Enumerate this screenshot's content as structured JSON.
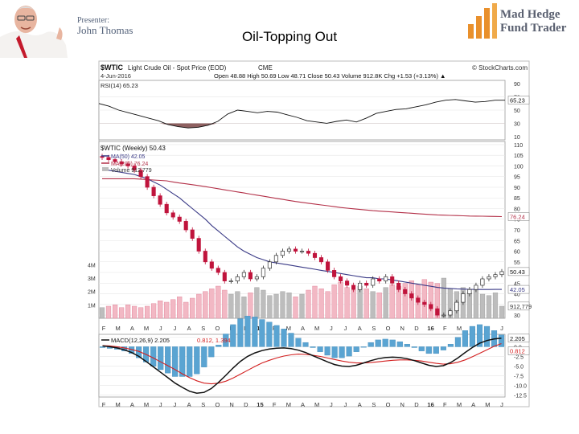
{
  "slide": {
    "title": "Oil-Topping Out",
    "presenter_label": "Presenter:",
    "presenter_name": "John Thomas",
    "logo_line1": "Mad Hedge",
    "logo_line2": "Fund Trader"
  },
  "colors": {
    "accent_orange": "#e9902c",
    "rsi_fill": "#7a4444",
    "ma50": "#3a3a86",
    "ma200": "#b33048",
    "candle_up": "#333333",
    "candle_down": "#c0143c",
    "macd_hist": "#5aa4d2",
    "signal": "#d32020"
  },
  "chart_data": {
    "type": "line",
    "header": {
      "symbol": "$WTIC",
      "name": "Light Crude Oil - Spot Price (EOD)",
      "exchange": "CME",
      "source": "© StockCharts.com",
      "date": "4-Jun-2016",
      "ohlc": "Open 48.88 High 50.69 Low 48.71 Close 50.43 Volume 912.8K Chg +1.53 (+3.13%) ▲"
    },
    "rsi": {
      "label": "RSI(14) 65.23",
      "current": 65.23,
      "ticks": [
        "90",
        "70",
        "50",
        "30",
        "10"
      ],
      "values": [
        60,
        56,
        50,
        46,
        42,
        38,
        34,
        28,
        25,
        23,
        24,
        27,
        33,
        44,
        50,
        48,
        46,
        48,
        47,
        43,
        39,
        34,
        32,
        30,
        33,
        35,
        32,
        38,
        45,
        48,
        51,
        52,
        55,
        58,
        62,
        65,
        66,
        64,
        62,
        63,
        65,
        65
      ]
    },
    "price": {
      "title": "$WTIC (Weekly) 50.43",
      "ma50_label": "MA(50) 42.05",
      "ma200_label": "MA(200) 76.24",
      "volume_label": "Volume 912,779",
      "ticks": [
        "110",
        "105",
        "100",
        "95",
        "90",
        "85",
        "80",
        "75",
        "70",
        "65",
        "60",
        "55",
        "50",
        "45",
        "40",
        "35",
        "30"
      ],
      "tick_values": [
        110,
        105,
        100,
        95,
        90,
        85,
        80,
        75,
        70,
        65,
        60,
        55,
        50,
        45,
        40,
        35,
        30
      ],
      "ylim": [
        28.5,
        111.5
      ],
      "close": 50.43,
      "ma50_last": 42.05,
      "ma200_last": 76.24,
      "close_tag": "50.43",
      "ma50_tag": "42.05",
      "ma200_tag": "76.24",
      "closes": [
        104,
        103,
        102,
        101,
        100,
        98,
        95,
        90,
        86,
        82,
        78,
        76,
        74,
        70,
        66,
        60,
        55,
        52,
        50,
        46,
        46,
        48,
        50,
        47,
        48,
        52,
        55,
        58,
        60,
        61,
        60,
        60,
        59,
        57,
        55,
        51,
        48,
        46,
        44,
        42,
        45,
        44,
        47,
        46,
        48,
        45,
        42,
        40,
        38,
        36,
        35,
        33,
        30,
        30,
        32,
        36,
        40,
        42,
        44,
        47,
        48,
        49,
        50.43
      ],
      "ma50": [
        98,
        98,
        97.5,
        97,
        96.5,
        96,
        95,
        94,
        92.5,
        91,
        89,
        87,
        85,
        82.5,
        80,
        77.5,
        75,
        72,
        69.5,
        67,
        64.5,
        62,
        60,
        58.5,
        57,
        56,
        55,
        54.5,
        54,
        53.5,
        53,
        52.5,
        52,
        51.5,
        51,
        50.5,
        50,
        49.5,
        49,
        48.5,
        48,
        47.5,
        47.5,
        47,
        47,
        46.5,
        46,
        45.5,
        45,
        44.5,
        44,
        43.5,
        43,
        42.7,
        42.5,
        42.3,
        42.2,
        42.1,
        42,
        42,
        42,
        42.05,
        42.05
      ],
      "ma200": [
        94,
        94,
        94,
        94,
        94,
        94,
        93.8,
        93.6,
        93.4,
        93.2,
        93,
        92.5,
        92,
        91.6,
        91.2,
        90.8,
        90.3,
        89.8,
        89.3,
        88.8,
        88.3,
        87.8,
        87.3,
        86.8,
        86.3,
        85.8,
        85.3,
        84.8,
        84.3,
        83.8,
        83.3,
        82.9,
        82.5,
        82.1,
        81.7,
        81.3,
        80.9,
        80.5,
        80.2,
        79.9,
        79.6,
        79.3,
        79,
        78.8,
        78.6,
        78.4,
        78.2,
        78,
        77.8,
        77.6,
        77.4,
        77.2,
        77,
        76.9,
        76.8,
        76.7,
        76.6,
        76.5,
        76.45,
        76.4,
        76.35,
        76.3,
        76.24
      ]
    },
    "volume": {
      "ticks": [
        "4M",
        "3M",
        "2M",
        "1M"
      ],
      "tick_values": [
        4,
        3,
        2,
        1
      ],
      "ylim": [
        0,
        4.5
      ],
      "last": "912,779",
      "values_m": [
        0.8,
        0.9,
        1.0,
        0.8,
        1.0,
        0.9,
        0.8,
        0.9,
        1.1,
        1.3,
        1.2,
        1.4,
        1.6,
        1.2,
        1.5,
        1.8,
        2.0,
        2.2,
        2.4,
        2.1,
        1.8,
        2.0,
        1.6,
        1.9,
        2.3,
        2.1,
        1.7,
        1.8,
        2.0,
        1.9,
        1.6,
        1.8,
        2.1,
        2.4,
        2.2,
        2.0,
        2.5,
        2.7,
        2.3,
        2.1,
        2.4,
        2.2,
        2.0,
        1.9,
        2.3,
        2.5,
        2.4,
        2.6,
        2.8,
        2.5,
        2.9,
        2.7,
        2.6,
        3.0,
        2.2,
        2.0,
        2.3,
        1.9,
        2.1,
        1.8,
        1.7,
        1.9,
        0.9
      ]
    },
    "macd": {
      "label": "MACD(12,26,9) 2.205, 0.812, 1.394",
      "macd_label": "MACD(12,26,9) 2.205",
      "signal_label": "0.812, 1.394",
      "ticks": [
        "2.5",
        "0.0",
        "-2.5",
        "-5.0",
        "-7.5",
        "-10.0",
        "-12.5"
      ],
      "tick_values": [
        2.5,
        0,
        -2.5,
        -5,
        -7.5,
        -10,
        -12.5
      ],
      "ylim": [
        -13,
        3.2
      ],
      "macd_tag": "2.205",
      "signal_tag": "0.812",
      "macd": [
        0.2,
        0,
        -0.3,
        -0.8,
        -1.5,
        -2.5,
        -3.8,
        -5.2,
        -6.6,
        -8,
        -9.4,
        -10.5,
        -11.5,
        -12,
        -11.8,
        -10.8,
        -9.2,
        -7.4,
        -5.5,
        -3.8,
        -2.5,
        -1.6,
        -1,
        -0.6,
        -0.4,
        -0.3,
        -0.5,
        -0.9,
        -1.5,
        -2.3,
        -3.1,
        -3.9,
        -4.6,
        -5,
        -5.1,
        -4.8,
        -4.2,
        -3.6,
        -3.1,
        -2.8,
        -2.7,
        -2.8,
        -3.1,
        -3.6,
        -4.2,
        -4.8,
        -5.1,
        -4.9,
        -4.1,
        -2.9,
        -1.5,
        -0.2,
        0.9,
        1.6,
        2,
        2.205
      ],
      "signal": [
        0.3,
        0.2,
        0,
        -0.3,
        -0.7,
        -1.2,
        -2,
        -2.9,
        -3.9,
        -4.9,
        -5.9,
        -7,
        -8,
        -8.8,
        -9.4,
        -9.6,
        -9.4,
        -8.9,
        -8.1,
        -7.1,
        -6.1,
        -5.1,
        -4.2,
        -3.5,
        -2.9,
        -2.4,
        -2.1,
        -1.9,
        -2,
        -2.2,
        -2.5,
        -2.9,
        -3.3,
        -3.7,
        -4,
        -4.2,
        -4.2,
        -4.1,
        -3.9,
        -3.7,
        -3.5,
        -3.4,
        -3.4,
        -3.5,
        -3.7,
        -4,
        -4.3,
        -4.5,
        -4.4,
        -4,
        -3.4,
        -2.6,
        -1.7,
        -0.8,
        0.1,
        0.812
      ]
    },
    "xaxis": {
      "labels": [
        "F",
        "M",
        "A",
        "M",
        "J",
        "J",
        "A",
        "S",
        "O",
        "N",
        "D",
        "15",
        "F",
        "M",
        "A",
        "M",
        "J",
        "J",
        "A",
        "S",
        "O",
        "N",
        "D",
        "16",
        "F",
        "M",
        "A",
        "M",
        "J"
      ]
    }
  }
}
